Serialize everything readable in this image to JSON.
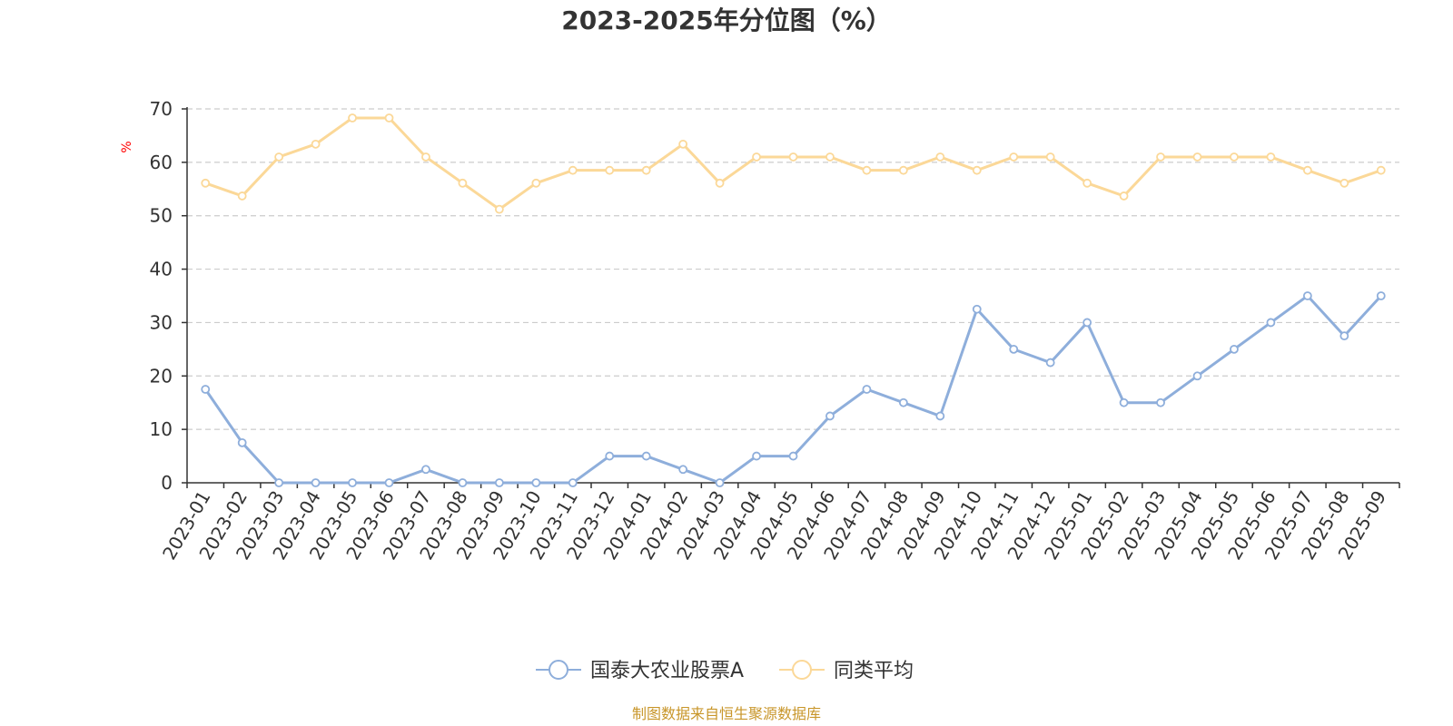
{
  "colors": {
    "series_a": "#8eaedb",
    "series_b": "#fbd898",
    "axis": "#333333",
    "grid": "#cccccc",
    "unit": "#ff0000",
    "source": "#c8962a"
  },
  "chart_data": {
    "type": "line",
    "title": "2023-2025年分位图（%）",
    "ylabel": "%",
    "xlabel": "",
    "ylim": [
      0,
      70
    ],
    "yticks": [
      0,
      10,
      20,
      30,
      40,
      50,
      60,
      70
    ],
    "grid": true,
    "legend_position": "bottom-center",
    "categories": [
      "2023-01",
      "2023-02",
      "2023-03",
      "2023-04",
      "2023-05",
      "2023-06",
      "2023-07",
      "2023-08",
      "2023-09",
      "2023-10",
      "2023-11",
      "2023-12",
      "2024-01",
      "2024-02",
      "2024-03",
      "2024-04",
      "2024-05",
      "2024-06",
      "2024-07",
      "2024-08",
      "2024-09",
      "2024-10",
      "2024-11",
      "2024-12",
      "2025-01",
      "2025-02",
      "2025-03",
      "2025-04",
      "2025-05",
      "2025-06",
      "2025-07",
      "2025-08",
      "2025-09"
    ],
    "series": [
      {
        "name": "国泰大农业股票A",
        "color": "#8eaedb",
        "values": [
          17.5,
          7.5,
          0,
          0,
          0,
          0,
          2.5,
          0,
          0,
          0,
          0,
          5,
          5,
          2.5,
          0,
          5,
          5,
          12.5,
          17.5,
          15,
          12.5,
          32.5,
          25,
          22.5,
          30,
          15,
          15,
          20,
          25,
          30,
          35,
          27.5,
          35
        ]
      },
      {
        "name": "同类平均",
        "color": "#fbd898",
        "values": [
          56.1,
          53.7,
          61,
          63.4,
          68.3,
          68.3,
          61,
          56.1,
          51.2,
          56.1,
          58.5,
          58.5,
          58.5,
          63.4,
          56.1,
          61,
          61,
          61,
          58.5,
          58.5,
          61,
          58.5,
          61,
          61,
          56.1,
          53.7,
          61,
          61,
          61,
          61,
          58.5,
          56.1,
          58.5
        ]
      }
    ]
  },
  "source_text": "制图数据来自恒生聚源数据库"
}
